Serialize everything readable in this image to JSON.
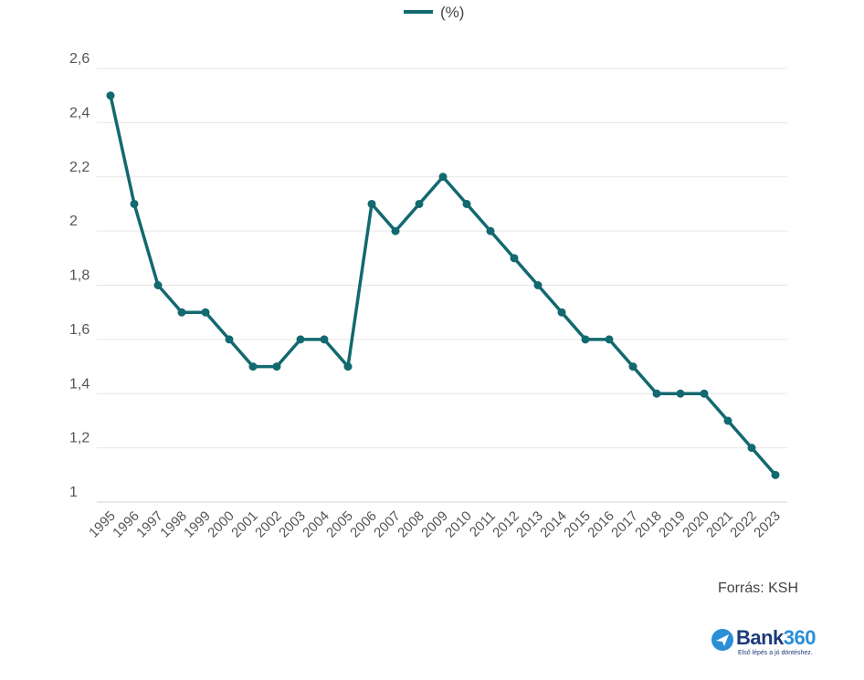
{
  "chart_data": {
    "type": "line",
    "title": "",
    "xlabel": "",
    "ylabel": "",
    "legend": {
      "position": "top-center"
    },
    "grid": true,
    "ylim": [
      1,
      2.6
    ],
    "y_ticks": [
      "1",
      "1,2",
      "1,4",
      "1,6",
      "1,8",
      "2",
      "2,2",
      "2,4",
      "2,6"
    ],
    "y_tick_values": [
      1,
      1.2,
      1.4,
      1.6,
      1.8,
      2,
      2.2,
      2.4,
      2.6
    ],
    "categories": [
      "1995",
      "1996",
      "1997",
      "1998",
      "1999",
      "2000",
      "2001",
      "2002",
      "2003",
      "2004",
      "2005",
      "2006",
      "2007",
      "2008",
      "2009",
      "2010",
      "2011",
      "2012",
      "2013",
      "2014",
      "2015",
      "2016",
      "2017",
      "2018",
      "2019",
      "2020",
      "2021",
      "2022",
      "2023"
    ],
    "series": [
      {
        "name": "(%)",
        "color": "#12696f",
        "values": [
          2.5,
          2.1,
          1.8,
          1.7,
          1.7,
          1.6,
          1.5,
          1.5,
          1.6,
          1.6,
          1.5,
          2.1,
          2.0,
          2.1,
          2.2,
          2.1,
          2.0,
          1.9,
          1.8,
          1.7,
          1.6,
          1.6,
          1.5,
          1.4,
          1.4,
          1.4,
          1.3,
          1.2,
          1.1
        ]
      }
    ]
  },
  "footer": {
    "source": "Forrás: KSH",
    "logo_text": "Bank",
    "logo_number": "360",
    "logo_tagline": "Első lépés a jó döntéshez.",
    "logo_icon": "bank360-arrow-icon"
  },
  "colors": {
    "accent": "#12696f",
    "grid": "#e6e6e6",
    "logo": "#1c3a7a"
  }
}
